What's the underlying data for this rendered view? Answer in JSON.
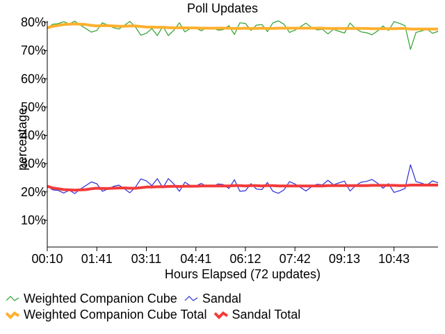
{
  "chart_data": {
    "type": "line",
    "title": "Poll Updates",
    "xlabel": "Hours Elapsed (72 updates)",
    "ylabel": "percentage",
    "ylim": [
      0,
      80
    ],
    "y_ticks": [
      "10%",
      "20%",
      "30%",
      "40%",
      "50%",
      "60%",
      "70%",
      "80%"
    ],
    "x_tick_labels": [
      "00:10",
      "01:41",
      "03:11",
      "04:41",
      "06:12",
      "07:42",
      "09:13",
      "10:43"
    ],
    "x": [
      1,
      2,
      3,
      4,
      5,
      6,
      7,
      8,
      9,
      10,
      11,
      12,
      13,
      14,
      15,
      16,
      17,
      18,
      19,
      20,
      21,
      22,
      23,
      24,
      25,
      26,
      27,
      28,
      29,
      30,
      31,
      32,
      33,
      34,
      35,
      36,
      37,
      38,
      39,
      40,
      41,
      42,
      43,
      44,
      45,
      46,
      47,
      48,
      49,
      50,
      51,
      52,
      53,
      54,
      55,
      56,
      57,
      58,
      59,
      60,
      61,
      62,
      63,
      64,
      65,
      66,
      67,
      68,
      69,
      70,
      71,
      72
    ],
    "grid": false,
    "legend_position": "bottom",
    "series": [
      {
        "name": "Weighted Companion Cube",
        "color": "#2ca02c",
        "values": [
          78.0,
          79.3,
          79.5,
          80.2,
          79.4,
          80.4,
          79.0,
          77.8,
          76.5,
          77.1,
          79.8,
          79.0,
          78.1,
          77.6,
          78.9,
          80.3,
          78.4,
          75.4,
          76.1,
          77.8,
          75.3,
          78.6,
          75.3,
          77.2,
          79.8,
          76.6,
          77.8,
          77.9,
          77.0,
          78.1,
          78.2,
          77.2,
          77.4,
          78.8,
          75.7,
          79.8,
          79.6,
          77.1,
          79.0,
          79.2,
          76.7,
          79.8,
          80.5,
          79.3,
          76.4,
          77.2,
          78.4,
          79.7,
          78.2,
          77.3,
          77.5,
          75.9,
          77.5,
          76.8,
          76.2,
          79.7,
          77.8,
          76.6,
          76.3,
          75.6,
          76.9,
          78.7,
          77.1,
          80.2,
          79.6,
          78.8,
          70.4,
          76.4,
          76.9,
          77.6,
          76.1,
          76.8
        ]
      },
      {
        "name": "Sandal",
        "color": "#2b2bd6",
        "values": [
          22.0,
          20.7,
          20.5,
          19.6,
          20.6,
          19.4,
          21.0,
          22.2,
          23.5,
          22.9,
          20.2,
          21.0,
          21.9,
          22.4,
          21.1,
          19.7,
          21.6,
          24.6,
          23.9,
          22.2,
          24.7,
          21.4,
          24.7,
          22.8,
          20.2,
          23.4,
          22.2,
          22.1,
          23.0,
          21.9,
          21.8,
          22.8,
          22.6,
          21.2,
          24.3,
          20.2,
          20.4,
          22.9,
          21.0,
          20.8,
          23.3,
          20.2,
          19.5,
          20.7,
          23.6,
          22.8,
          21.6,
          20.3,
          21.8,
          22.7,
          22.5,
          24.1,
          22.5,
          23.2,
          23.8,
          20.3,
          22.2,
          23.4,
          23.7,
          24.4,
          23.1,
          21.3,
          22.9,
          19.8,
          20.4,
          21.2,
          29.6,
          23.6,
          23.1,
          22.4,
          23.9,
          23.2
        ]
      },
      {
        "name": "Weighted Companion Cube Total",
        "color": "#ffb02e",
        "values": [
          78.0,
          78.6,
          78.9,
          79.2,
          79.3,
          79.4,
          79.3,
          79.2,
          78.9,
          78.7,
          78.8,
          78.8,
          78.7,
          78.6,
          78.6,
          78.7,
          78.7,
          78.5,
          78.3,
          78.3,
          78.2,
          78.2,
          78.1,
          78.0,
          78.1,
          78.0,
          78.0,
          78.0,
          77.9,
          77.9,
          77.9,
          77.9,
          77.9,
          77.9,
          77.8,
          77.8,
          77.9,
          77.8,
          77.8,
          77.9,
          77.8,
          77.8,
          77.9,
          77.9,
          77.9,
          77.9,
          77.9,
          77.9,
          77.9,
          77.9,
          77.9,
          77.8,
          77.8,
          77.8,
          77.8,
          77.8,
          77.8,
          77.8,
          77.8,
          77.7,
          77.7,
          77.7,
          77.7,
          77.7,
          77.8,
          77.8,
          77.6,
          77.6,
          77.6,
          77.6,
          77.6,
          77.6
        ]
      },
      {
        "name": "Sandal Total",
        "color": "#f23b3b",
        "values": [
          22.0,
          21.4,
          21.1,
          20.8,
          20.7,
          20.6,
          20.7,
          20.8,
          21.1,
          21.3,
          21.2,
          21.2,
          21.3,
          21.4,
          21.4,
          21.3,
          21.3,
          21.5,
          21.7,
          21.7,
          21.8,
          21.8,
          21.9,
          22.0,
          21.9,
          22.0,
          22.0,
          22.0,
          22.1,
          22.1,
          22.1,
          22.1,
          22.1,
          22.1,
          22.2,
          22.2,
          22.1,
          22.2,
          22.2,
          22.1,
          22.2,
          22.2,
          22.1,
          22.1,
          22.1,
          22.1,
          22.1,
          22.1,
          22.1,
          22.1,
          22.1,
          22.2,
          22.2,
          22.2,
          22.2,
          22.2,
          22.2,
          22.2,
          22.2,
          22.3,
          22.3,
          22.3,
          22.3,
          22.3,
          22.2,
          22.2,
          22.4,
          22.4,
          22.4,
          22.4,
          22.4,
          22.4
        ]
      }
    ]
  }
}
